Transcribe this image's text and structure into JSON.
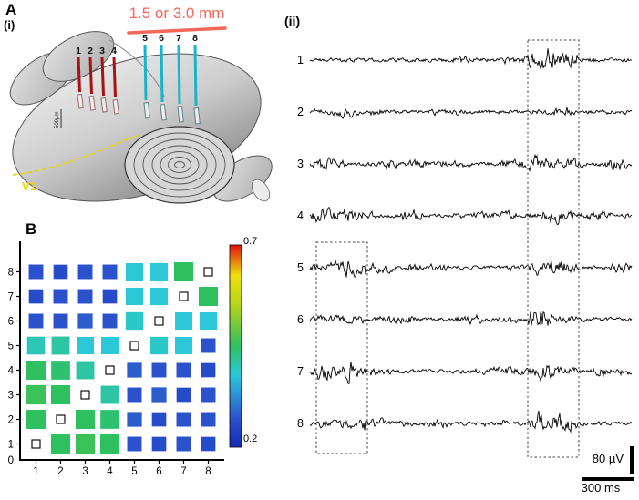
{
  "figure": {
    "panel_a": {
      "label": "A",
      "sub_label": "(i)",
      "distance_label": "1.5 or 3.0 mm",
      "v1_label": "V1",
      "depth_scale_label": "500µm",
      "red_electrode_numbers": [
        "1",
        "2",
        "3",
        "4"
      ],
      "cyan_electrode_numbers": [
        "5",
        "6",
        "7",
        "8"
      ],
      "colors": {
        "distance_text": "#f2685a",
        "red_electrode": "#a81212",
        "cyan_electrode": "#1ab4c8",
        "v1_text": "#e8d600"
      }
    },
    "panel_b": {
      "label": "B",
      "origin_label": "0"
    },
    "panel_ii": {
      "label": "(ii)",
      "trace_labels": [
        "1",
        "2",
        "3",
        "4",
        "5",
        "6",
        "7",
        "8"
      ],
      "voltage_scale_label": "80 µV",
      "time_scale_label": "300 ms"
    }
  },
  "chart_data": {
    "type": "heatmap",
    "x_labels": [
      "1",
      "2",
      "3",
      "4",
      "5",
      "6",
      "7",
      "8"
    ],
    "y_labels": [
      "1",
      "2",
      "3",
      "4",
      "5",
      "6",
      "7",
      "8"
    ],
    "value_range": [
      0.2,
      0.7
    ],
    "colormap": "jet",
    "colorbar": {
      "max": "0.7",
      "min": "0.2"
    },
    "rows_y1_bottom_to_y8_top": [
      [
        null,
        0.45,
        0.46,
        0.45,
        0.27,
        0.26,
        0.27,
        0.26
      ],
      [
        0.45,
        null,
        0.45,
        0.44,
        0.28,
        0.26,
        0.27,
        0.27
      ],
      [
        0.46,
        0.45,
        null,
        0.41,
        0.27,
        0.28,
        0.26,
        0.27
      ],
      [
        0.45,
        0.44,
        0.41,
        null,
        0.28,
        0.27,
        0.27,
        0.26
      ],
      [
        0.4,
        0.41,
        0.38,
        0.38,
        null,
        0.39,
        0.38,
        0.27
      ],
      [
        0.27,
        0.27,
        0.28,
        0.27,
        0.39,
        null,
        0.38,
        0.38
      ],
      [
        0.26,
        0.27,
        0.27,
        0.26,
        0.38,
        0.38,
        null,
        0.45
      ],
      [
        0.27,
        0.26,
        0.27,
        0.27,
        0.38,
        0.38,
        0.45,
        null
      ]
    ]
  }
}
